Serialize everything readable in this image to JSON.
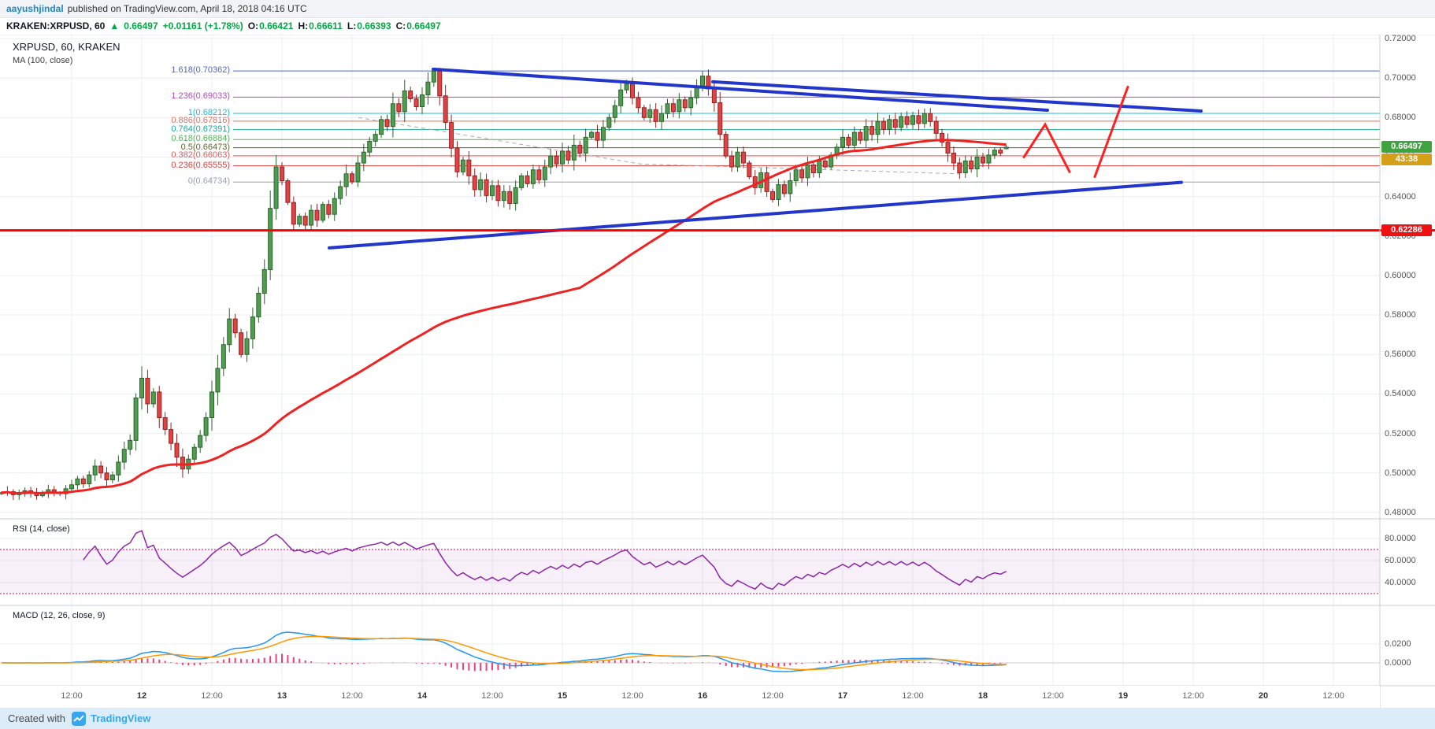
{
  "header": {
    "publisher": "aayushjindal",
    "publish_info": "published on TradingView.com, April 18, 2018 04:16 UTC"
  },
  "symbol_bar": {
    "symbol": "KRAKEN:XRPUSD, 60",
    "arrow": "▲",
    "last_price": "0.66497",
    "change": "+0.01161 (+1.78%)",
    "ohlc": [
      {
        "label": "O:",
        "value": "0.66421"
      },
      {
        "label": "H:",
        "value": "0.66611"
      },
      {
        "label": "L:",
        "value": "0.66393"
      },
      {
        "label": "C:",
        "value": "0.66497"
      }
    ]
  },
  "pane_labels": {
    "main_title": "XRPUSD, 60, KRAKEN",
    "ma_label": "MA (100, close)",
    "rsi_label": "RSI (14, close)",
    "macd_label": "MACD (12, 26, close, 9)"
  },
  "axes": {
    "price": [
      "0.72000",
      "0.70000",
      "0.68000",
      "0.66000",
      "0.64000",
      "0.62000",
      "0.60000",
      "0.58000",
      "0.56000",
      "0.54000",
      "0.52000",
      "0.50000",
      "0.48000"
    ],
    "rsi": [
      "80.0000",
      "60.0000",
      "40.0000"
    ],
    "macd": [
      "0.0200",
      "0.0000"
    ],
    "time": [
      "12:00",
      "12",
      "12:00",
      "13",
      "12:00",
      "14",
      "12:00",
      "15",
      "12:00",
      "16",
      "12:00",
      "17",
      "12:00",
      "18",
      "12:00",
      "19",
      "12:00",
      "20",
      "12:00"
    ]
  },
  "badges": {
    "last_price": "0.66497",
    "countdown": "43:38",
    "alert_price": "0.62286"
  },
  "footer": {
    "created_with": "Created with",
    "brand": "TradingView"
  },
  "colors": {
    "candle_up": "#4f9e50",
    "candle_up_border": "#2c632d",
    "candle_down": "#e04343",
    "candle_down_border": "#942222",
    "ma_line": "#ef2222",
    "support_line": "#ff0000",
    "trendline_blue": "#2236cc",
    "projection_red": "#ff2121",
    "rsi_line": "#8e24aa",
    "rsi_band_edge": "#c2185b",
    "macd_line": "#2196f3",
    "macd_signal": "#ff9800",
    "macd_hist": "#ec407a",
    "grid": "#eceff1",
    "separator": "#c9ced6",
    "badge_price_bg": "#3fa33f",
    "badge_countdown_bg": "#d4a017",
    "badge_alert_bg": "#ee1111"
  },
  "chart_data": {
    "type": "candlestick",
    "title": "XRPUSD, 60, KRAKEN",
    "exchange": "KRAKEN",
    "symbol": "XRPUSD",
    "interval_minutes": 60,
    "visible_time_range": [
      "2018-04-11 00:00 UTC",
      "2018-04-20 12:00 UTC"
    ],
    "price_axis_range": [
      0.48,
      0.72
    ],
    "first_candle_time": "2018-04-11 00:00 UTC",
    "last_candle_time": "2018-04-18 04:00 UTC",
    "last_candle": {
      "open": 0.66421,
      "high": 0.66611,
      "low": 0.66393,
      "close": 0.66497
    },
    "hourly_closes": [
      0.49,
      0.4905,
      0.489,
      0.4895,
      0.491,
      0.49,
      0.4885,
      0.49,
      0.4915,
      0.49,
      0.4895,
      0.492,
      0.494,
      0.497,
      0.4945,
      0.499,
      0.5035,
      0.5,
      0.4965,
      0.499,
      0.5055,
      0.512,
      0.5165,
      0.538,
      0.548,
      0.535,
      0.541,
      0.528,
      0.522,
      0.515,
      0.508,
      0.502,
      0.507,
      0.513,
      0.519,
      0.528,
      0.541,
      0.553,
      0.565,
      0.578,
      0.571,
      0.56,
      0.568,
      0.579,
      0.591,
      0.603,
      0.634,
      0.655,
      0.648,
      0.637,
      0.626,
      0.63,
      0.6255,
      0.633,
      0.628,
      0.636,
      0.631,
      0.639,
      0.645,
      0.6515,
      0.6475,
      0.657,
      0.6625,
      0.668,
      0.6715,
      0.679,
      0.6755,
      0.687,
      0.683,
      0.6935,
      0.6895,
      0.6855,
      0.6915,
      0.698,
      0.7035,
      0.691,
      0.6775,
      0.6645,
      0.6525,
      0.6585,
      0.6505,
      0.6435,
      0.6485,
      0.6405,
      0.6455,
      0.638,
      0.6425,
      0.6365,
      0.6445,
      0.6505,
      0.6465,
      0.6535,
      0.6485,
      0.655,
      0.6605,
      0.6565,
      0.663,
      0.6585,
      0.666,
      0.662,
      0.67,
      0.6725,
      0.6685,
      0.675,
      0.68,
      0.686,
      0.694,
      0.697,
      0.69,
      0.685,
      0.68,
      0.684,
      0.678,
      0.682,
      0.687,
      0.683,
      0.689,
      0.685,
      0.69,
      0.696,
      0.701,
      0.6945,
      0.6875,
      0.6715,
      0.6605,
      0.655,
      0.6625,
      0.657,
      0.65,
      0.6445,
      0.652,
      0.6425,
      0.6385,
      0.646,
      0.6415,
      0.648,
      0.6535,
      0.6495,
      0.656,
      0.652,
      0.658,
      0.655,
      0.661,
      0.665,
      0.67,
      0.666,
      0.6725,
      0.6685,
      0.6755,
      0.6715,
      0.678,
      0.674,
      0.679,
      0.675,
      0.6805,
      0.6765,
      0.681,
      0.677,
      0.682,
      0.678,
      0.672,
      0.6675,
      0.662,
      0.657,
      0.652,
      0.658,
      0.654,
      0.66,
      0.657,
      0.661,
      0.6635,
      0.662,
      0.66497
    ],
    "ma": {
      "period": 100,
      "source": "close"
    },
    "rsi": {
      "period": 14,
      "overbought": 70,
      "oversold": 30
    },
    "macd": {
      "fast": 12,
      "slow": 26,
      "signal": 9
    },
    "fib_retracement": [
      {
        "label": "1.618(0.70362)",
        "price": 0.70362,
        "color": "#5166c9"
      },
      {
        "label": "1.236(0.69033)",
        "price": 0.69033,
        "color": "#a84fb5"
      },
      {
        "label": "1(0.68212)",
        "price": 0.68212,
        "color": "#18bcd4"
      },
      {
        "label": "0.886(0.67816)",
        "price": 0.67816,
        "color": "#ef6a5a"
      },
      {
        "label": "0.764(0.67391)",
        "price": 0.67391,
        "color": "#1fa99a"
      },
      {
        "label": "0.618(0.66884)",
        "price": 0.66884,
        "color": "#58b05c"
      },
      {
        "label": "0.5(0.66473)",
        "price": 0.66473,
        "color": "#62622e"
      },
      {
        "label": "0.382(0.66063)",
        "price": 0.66063,
        "color": "#e45653"
      },
      {
        "label": "0.236(0.65555)",
        "price": 0.65555,
        "color": "#d8413e"
      },
      {
        "label": "0(0.64734)",
        "price": 0.64734,
        "color": "#9aa0a6"
      }
    ],
    "support_line": {
      "price": 0.62286
    },
    "trendlines": [
      {
        "name": "upper-descending-major",
        "points": [
          [
            550,
            0.7045
          ],
          [
            1330,
            0.6837
          ]
        ]
      },
      {
        "name": "upper-descending-minor",
        "points": [
          [
            905,
            0.6981
          ],
          [
            1525,
            0.6833
          ]
        ]
      },
      {
        "name": "lower-ascending",
        "points": [
          [
            418,
            0.614
          ],
          [
            1500,
            0.6472
          ]
        ]
      }
    ],
    "projection_marks": [
      {
        "name": "zigzag",
        "points": [
          [
            1300,
            0.66
          ],
          [
            1327,
            0.6765
          ],
          [
            1358,
            0.6525
          ]
        ]
      },
      {
        "name": "rally-line",
        "points": [
          [
            1390,
            0.65
          ],
          [
            1432,
            0.6955
          ]
        ]
      }
    ],
    "guide_dashes": [
      {
        "points": [
          [
            455,
            0.68
          ],
          [
            813,
            0.6565
          ],
          [
            1218,
            0.6515
          ]
        ]
      }
    ]
  }
}
